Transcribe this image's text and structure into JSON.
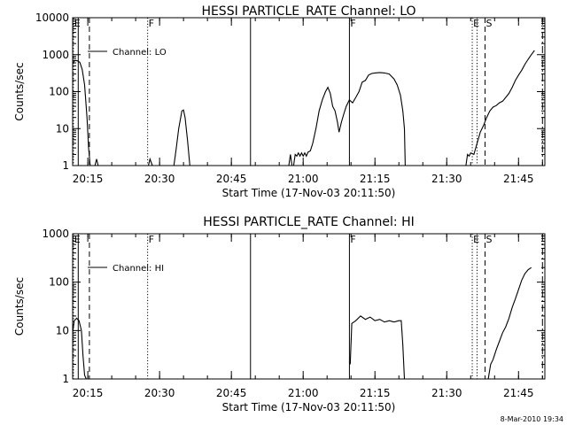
{
  "footer": {
    "date_stamp": "8-Mar-2010 19:34"
  },
  "chart_data": [
    {
      "type": "line",
      "title": "HESSI PARTICLE_RATE Channel: LO",
      "xlabel": "Start Time (17-Nov-03 20:11:50)",
      "ylabel": "Counts/sec",
      "yscale": "log",
      "xlim": [
        "20:11:50",
        "21:50:30"
      ],
      "ylim": [
        1,
        10000
      ],
      "x_ticks": [
        "20:15",
        "20:30",
        "20:45",
        "21:00",
        "21:15",
        "21:30",
        "21:45"
      ],
      "y_ticks": [
        "1",
        "10",
        "100",
        "1000",
        "10000"
      ],
      "legend": {
        "placement": "top-left",
        "entries": [
          "Channel: LO"
        ]
      },
      "series": [
        {
          "name": "Channel: LO",
          "points": [
            [
              "20:11:50",
              600
            ],
            [
              "20:12:20",
              700
            ],
            [
              "20:12:50",
              680
            ],
            [
              "20:13:20",
              620
            ],
            [
              "20:13:50",
              400
            ],
            [
              "20:14:20",
              150
            ],
            [
              "20:14:50",
              20
            ],
            [
              "20:15:10",
              3
            ],
            [
              "20:15:30",
              1
            ],
            null,
            [
              "20:16:30",
              1
            ],
            [
              "20:16:50",
              1.5
            ],
            [
              "20:17:10",
              1
            ],
            null,
            [
              "20:27:40",
              1
            ],
            [
              "20:28:00",
              1.5
            ],
            [
              "20:28:30",
              1
            ],
            null,
            [
              "20:33:00",
              1
            ],
            [
              "20:33:30",
              3
            ],
            [
              "20:34:00",
              10
            ],
            [
              "20:34:40",
              30
            ],
            [
              "20:35:00",
              32
            ],
            [
              "20:35:20",
              20
            ],
            [
              "20:35:50",
              5
            ],
            [
              "20:36:20",
              1
            ],
            null,
            [
              "20:57:00",
              1
            ],
            [
              "20:57:20",
              2
            ],
            [
              "20:57:40",
              1
            ],
            null,
            [
              "20:58:00",
              1
            ],
            [
              "20:58:20",
              2
            ],
            [
              "20:58:40",
              1.8
            ],
            [
              "20:59:00",
              2.2
            ],
            [
              "20:59:20",
              1.8
            ],
            [
              "20:59:40",
              2.2
            ],
            [
              "21:00:00",
              1.8
            ],
            [
              "21:00:20",
              2.2
            ],
            [
              "21:00:40",
              1.8
            ],
            [
              "21:01:00",
              2.3
            ],
            [
              "21:01:30",
              2.5
            ],
            [
              "21:02:00",
              4
            ],
            [
              "21:02:40",
              10
            ],
            [
              "21:03:20",
              30
            ],
            [
              "21:04:00",
              60
            ],
            [
              "21:04:40",
              100
            ],
            [
              "21:05:10",
              130
            ],
            [
              "21:05:40",
              90
            ],
            [
              "21:06:10",
              40
            ],
            [
              "21:06:40",
              30
            ],
            [
              "21:07:10",
              15
            ],
            [
              "21:07:30",
              8
            ],
            [
              "21:08:00",
              15
            ],
            [
              "21:08:30",
              25
            ],
            [
              "21:09:00",
              40
            ],
            [
              "21:09:40",
              60
            ],
            [
              "21:10:20",
              50
            ],
            [
              "21:11:00",
              70
            ],
            [
              "21:11:40",
              100
            ],
            [
              "21:12:20",
              180
            ],
            [
              "21:13:00",
              200
            ],
            [
              "21:13:40",
              280
            ],
            [
              "21:14:20",
              310
            ],
            [
              "21:15:00",
              320
            ],
            [
              "21:16:00",
              330
            ],
            [
              "21:17:00",
              320
            ],
            [
              "21:18:00",
              300
            ],
            [
              "21:19:00",
              220
            ],
            [
              "21:19:40",
              150
            ],
            [
              "21:20:20",
              80
            ],
            [
              "21:20:50",
              30
            ],
            [
              "21:21:10",
              10
            ],
            [
              "21:21:20",
              1
            ],
            null,
            [
              "21:34:00",
              1
            ],
            [
              "21:34:20",
              2
            ],
            [
              "21:34:40",
              1.8
            ],
            [
              "21:35:00",
              2.2
            ],
            [
              "21:35:40",
              2
            ],
            [
              "21:36:20",
              4
            ],
            [
              "21:37:00",
              8
            ],
            [
              "21:37:40",
              12
            ],
            [
              "21:38:20",
              20
            ],
            [
              "21:39:00",
              30
            ],
            [
              "21:39:40",
              38
            ],
            [
              "21:40:20",
              42
            ],
            [
              "21:41:00",
              50
            ],
            [
              "21:41:40",
              55
            ],
            [
              "21:42:20",
              70
            ],
            [
              "21:43:00",
              90
            ],
            [
              "21:43:40",
              130
            ],
            [
              "21:44:20",
              200
            ],
            [
              "21:45:00",
              280
            ],
            [
              "21:45:40",
              380
            ],
            [
              "21:46:20",
              550
            ],
            [
              "21:47:00",
              750
            ],
            [
              "21:47:40",
              1000
            ],
            [
              "21:48:20",
              1300
            ]
          ]
        }
      ],
      "markers": [
        {
          "time": "20:12:00",
          "style": "dotted",
          "label": "E"
        },
        {
          "time": "20:13:00",
          "style": "solid",
          "label": ""
        },
        {
          "time": "20:15:20",
          "style": "dashed",
          "label": ""
        },
        {
          "time": "20:27:30",
          "style": "dotted",
          "label": "F"
        },
        {
          "time": "20:49:00",
          "style": "solid",
          "label": ""
        },
        {
          "time": "21:09:40",
          "style": "solid",
          "label": "F"
        },
        {
          "time": "21:35:20",
          "style": "dotted",
          "label": "E"
        },
        {
          "time": "21:36:20",
          "style": "dotted",
          "label": ""
        },
        {
          "time": "21:38:00",
          "style": "dashed",
          "label": "S"
        },
        {
          "time": "21:50:00",
          "style": "dashdot",
          "label": ""
        }
      ]
    },
    {
      "type": "line",
      "title": "HESSI PARTICLE_RATE Channel: HI",
      "xlabel": "Start Time (17-Nov-03 20:11:50)",
      "ylabel": "Counts/sec",
      "yscale": "log",
      "xlim": [
        "20:11:50",
        "21:50:30"
      ],
      "ylim": [
        1,
        1000
      ],
      "x_ticks": [
        "20:15",
        "20:30",
        "20:45",
        "21:00",
        "21:15",
        "21:30",
        "21:45"
      ],
      "y_ticks": [
        "1",
        "10",
        "100",
        "1000"
      ],
      "legend": {
        "placement": "top-left",
        "entries": [
          "Channel: HI"
        ]
      },
      "series": [
        {
          "name": "Channel: HI",
          "points": [
            [
              "20:11:50",
              9
            ],
            [
              "20:12:10",
              16
            ],
            [
              "20:12:40",
              18
            ],
            [
              "20:13:10",
              16
            ],
            [
              "20:13:40",
              10
            ],
            [
              "20:14:00",
              3
            ],
            [
              "20:14:20",
              1.2
            ],
            [
              "20:14:40",
              1
            ],
            null,
            [
              "21:09:50",
              2
            ],
            [
              "21:10:10",
              14
            ],
            [
              "21:11:00",
              16
            ],
            [
              "21:12:00",
              20
            ],
            [
              "21:13:00",
              17
            ],
            [
              "21:14:00",
              19
            ],
            [
              "21:15:00",
              16
            ],
            [
              "21:16:00",
              17
            ],
            [
              "21:17:00",
              15
            ],
            [
              "21:18:00",
              16
            ],
            [
              "21:19:00",
              15
            ],
            [
              "21:20:00",
              16
            ],
            [
              "21:20:30",
              16
            ],
            [
              "21:20:50",
              5
            ],
            [
              "21:21:10",
              1
            ],
            null,
            [
              "21:38:40",
              1
            ],
            [
              "21:39:10",
              2
            ],
            [
              "21:39:40",
              2.5
            ],
            [
              "21:40:20",
              4
            ],
            [
              "21:41:00",
              6
            ],
            [
              "21:41:40",
              9
            ],
            [
              "21:42:20",
              12
            ],
            [
              "21:43:00",
              18
            ],
            [
              "21:43:40",
              30
            ],
            [
              "21:44:20",
              45
            ],
            [
              "21:45:00",
              70
            ],
            [
              "21:45:40",
              110
            ],
            [
              "21:46:20",
              150
            ],
            [
              "21:47:00",
              180
            ],
            [
              "21:47:40",
              200
            ]
          ]
        }
      ],
      "markers": [
        {
          "time": "20:12:00",
          "style": "dotted",
          "label": "E"
        },
        {
          "time": "20:13:00",
          "style": "solid",
          "label": ""
        },
        {
          "time": "20:15:20",
          "style": "dashed",
          "label": ""
        },
        {
          "time": "20:27:30",
          "style": "dotted",
          "label": "F"
        },
        {
          "time": "20:49:00",
          "style": "solid",
          "label": ""
        },
        {
          "time": "21:09:40",
          "style": "solid",
          "label": "F"
        },
        {
          "time": "21:35:20",
          "style": "dotted",
          "label": "E"
        },
        {
          "time": "21:36:20",
          "style": "dotted",
          "label": ""
        },
        {
          "time": "21:38:00",
          "style": "dashed",
          "label": "S"
        },
        {
          "time": "21:50:00",
          "style": "dashdot",
          "label": ""
        }
      ]
    }
  ]
}
